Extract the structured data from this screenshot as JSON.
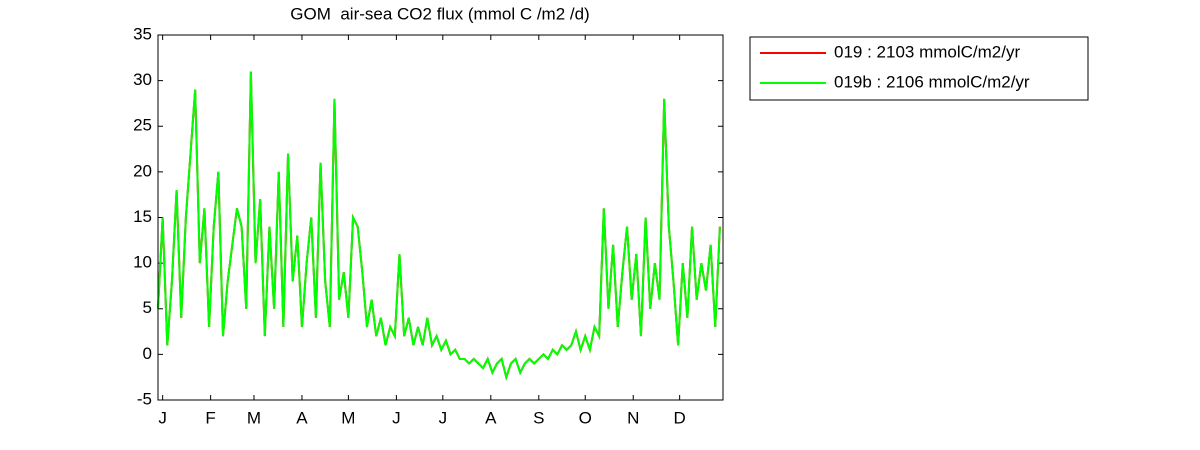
{
  "chart_data": {
    "type": "line",
    "title": "GOM  air-sea CO2 flux (mmol C /m2 /d)",
    "x": [
      0,
      3,
      6,
      9,
      12,
      15,
      18,
      21,
      24,
      27,
      30,
      33,
      36,
      39,
      42,
      45,
      48,
      51,
      54,
      57,
      60,
      63,
      66,
      69,
      72,
      75,
      78,
      81,
      84,
      87,
      90,
      93,
      96,
      99,
      102,
      105,
      108,
      111,
      114,
      117,
      120,
      123,
      126,
      129,
      132,
      135,
      138,
      141,
      144,
      147,
      150,
      153,
      156,
      159,
      162,
      165,
      168,
      171,
      174,
      177,
      180,
      183,
      186,
      189,
      192,
      195,
      198,
      201,
      204,
      207,
      210,
      213,
      216,
      219,
      222,
      225,
      228,
      231,
      234,
      237,
      240,
      243,
      246,
      249,
      252,
      255,
      258,
      261,
      264,
      267,
      270,
      273,
      276,
      279,
      282,
      285,
      288,
      291,
      294,
      297,
      300,
      303,
      306,
      309,
      312,
      315,
      318,
      321,
      324,
      327,
      330,
      333,
      336,
      339,
      342,
      345,
      348,
      351,
      354,
      357,
      360,
      363
    ],
    "series": [
      {
        "name": "019 : 2103 mmolC/m2/yr",
        "color": "#ff0000",
        "values": [
          5,
          15,
          1,
          8,
          18,
          4,
          15,
          22,
          29,
          10,
          16,
          3,
          14,
          20,
          2,
          8,
          12,
          16,
          14,
          5,
          31,
          10,
          17,
          2,
          14,
          5,
          20,
          3,
          22,
          8,
          13,
          3,
          10,
          15,
          4,
          21,
          8,
          3,
          28,
          6,
          9,
          4,
          15,
          14,
          9,
          3,
          6,
          2,
          4,
          1,
          3,
          2,
          11,
          2,
          4,
          1,
          3,
          1,
          4,
          1,
          2,
          0.5,
          1.5,
          0,
          0.5,
          -0.5,
          -0.5,
          -1,
          -0.5,
          -1,
          -1.5,
          -0.5,
          -2,
          -1,
          -0.5,
          -2.5,
          -1,
          -0.5,
          -2,
          -1,
          -0.5,
          -1,
          -0.5,
          0,
          -0.5,
          0.5,
          0,
          1,
          0.5,
          1,
          2.5,
          0.5,
          2,
          0.5,
          3,
          2,
          16,
          5,
          12,
          3,
          9,
          14,
          6,
          11,
          2,
          15,
          5,
          10,
          6,
          28,
          14,
          8,
          1,
          10,
          4,
          14,
          6,
          10,
          7,
          12,
          3,
          14
        ]
      },
      {
        "name": "019b : 2106 mmolC/m2/yr",
        "color": "#00ff00",
        "values": [
          5,
          15,
          1,
          8,
          18,
          4,
          15,
          22,
          29,
          10,
          16,
          3,
          14,
          20,
          2,
          8,
          12,
          16,
          14,
          5,
          31,
          10,
          17,
          2,
          14,
          5,
          20,
          3,
          22,
          8,
          13,
          3,
          10,
          15,
          4,
          21,
          8,
          3,
          28,
          6,
          9,
          4,
          15,
          14,
          9,
          3,
          6,
          2,
          4,
          1,
          3,
          2,
          11,
          2,
          4,
          1,
          3,
          1,
          4,
          1,
          2,
          0.5,
          1.5,
          0,
          0.5,
          -0.5,
          -0.5,
          -1,
          -0.5,
          -1,
          -1.5,
          -0.5,
          -2,
          -1,
          -0.5,
          -2.5,
          -1,
          -0.5,
          -2,
          -1,
          -0.5,
          -1,
          -0.5,
          0,
          -0.5,
          0.5,
          0,
          1,
          0.5,
          1,
          2.5,
          0.5,
          2,
          0.5,
          3,
          2,
          16,
          5,
          12,
          3,
          9,
          14,
          6,
          11,
          2,
          15,
          5,
          10,
          6,
          28,
          14,
          8,
          1,
          10,
          4,
          14,
          6,
          10,
          7,
          12,
          3,
          14
        ]
      }
    ],
    "xlim": [
      0,
      365
    ],
    "xticks": [
      {
        "value": 3,
        "label": "J"
      },
      {
        "value": 34,
        "label": "F"
      },
      {
        "value": 62,
        "label": "M"
      },
      {
        "value": 93,
        "label": "A"
      },
      {
        "value": 123,
        "label": "M"
      },
      {
        "value": 154,
        "label": "J"
      },
      {
        "value": 184,
        "label": "J"
      },
      {
        "value": 215,
        "label": "A"
      },
      {
        "value": 246,
        "label": "S"
      },
      {
        "value": 276,
        "label": "O"
      },
      {
        "value": 307,
        "label": "N"
      },
      {
        "value": 337,
        "label": "D"
      }
    ],
    "ylim": [
      -5,
      35
    ],
    "yticks": [
      -5,
      0,
      5,
      10,
      15,
      20,
      25,
      30,
      35
    ],
    "legend": "outside-right"
  }
}
